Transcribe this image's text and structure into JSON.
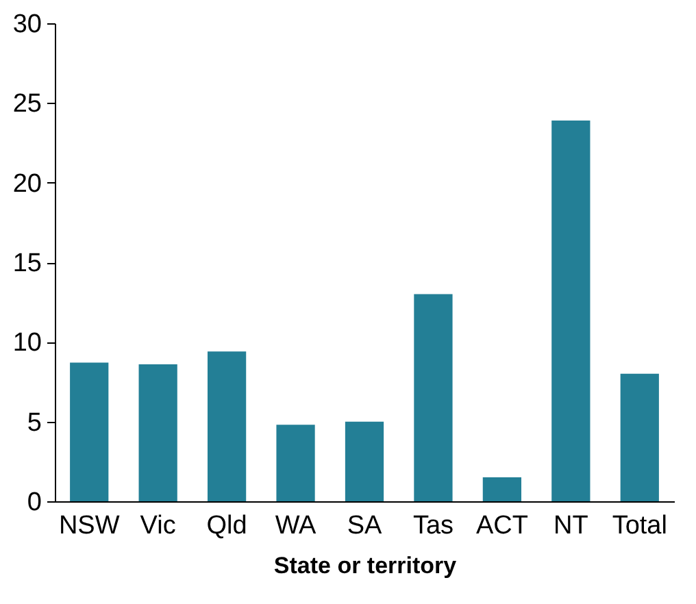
{
  "chart_data": {
    "type": "bar",
    "xlabel": "State or territory",
    "categories": [
      "NSW",
      "Vic",
      "Qld",
      "WA",
      "SA",
      "Tas",
      "ACT",
      "NT",
      "Total"
    ],
    "values": [
      8.7,
      8.6,
      9.4,
      4.8,
      5.0,
      13.0,
      1.5,
      23.9,
      8.0
    ],
    "color": "#237f96",
    "ylim": [
      0,
      30
    ],
    "yticks": [
      0,
      5,
      10,
      15,
      20,
      25,
      30
    ],
    "grid": false
  }
}
